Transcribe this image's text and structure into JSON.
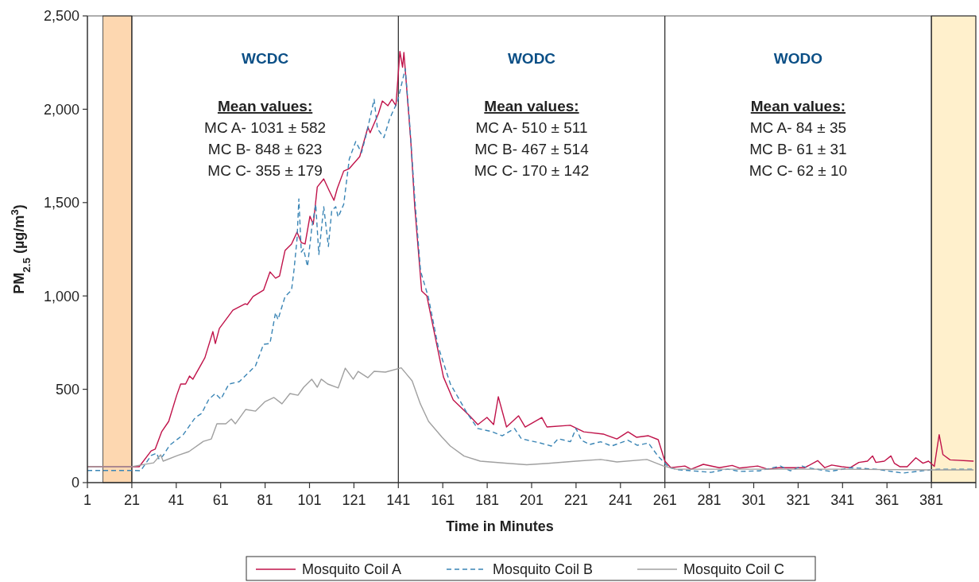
{
  "chart_data": {
    "type": "line",
    "xlabel": "Time in Minutes",
    "ylabel": "PM$_{2.5}$ (µg/m$^{3}$)",
    "xlim": [
      1,
      401
    ],
    "xticks": [
      1,
      21,
      41,
      61,
      81,
      101,
      121,
      141,
      161,
      181,
      201,
      221,
      241,
      261,
      281,
      301,
      321,
      341,
      361,
      381,
      {
        "value": 401,
        "label": null
      }
    ],
    "ylim": [
      0,
      2500
    ],
    "yticks": [
      0,
      500,
      {
        "value": 1000,
        "label": "1,000"
      },
      {
        "value": 1500,
        "label": "1,500"
      },
      {
        "value": 2000,
        "label": "2,000"
      },
      {
        "value": 2500,
        "label": "2,500"
      }
    ],
    "grid": false,
    "legend": "bottom",
    "series": [
      {
        "name": "Mosquito Coil A",
        "color": "#c0134a",
        "line_style": "solid",
        "x": [
          1,
          21,
          24.3,
          29.7,
          31.5,
          34.4,
          37.6,
          41.2,
          43,
          45.2,
          47,
          48.5,
          53.9,
          57.5,
          58.6,
          60.4,
          66.5,
          72,
          73,
          75.6,
          80.3,
          83.2,
          85.7,
          87.5,
          90,
          92.9,
          95.4,
          97.3,
          99,
          101.2,
          102.7,
          104.5,
          107.4,
          109.9,
          112,
          113.5,
          116.4,
          118.9,
          123.6,
          127.3,
          128.3,
          132,
          133.8,
          136.3,
          138.1,
          139.9,
          141.7,
          142.9,
          143.5,
          146.6,
          148.4,
          151.5,
          153.8,
          157.1,
          161.3,
          165.7,
          173.1,
          176.8,
          180.9,
          183.9,
          186,
          189.7,
          195.1,
          198.1,
          205.6,
          207.9,
          218.4,
          224.5,
          233.3,
          239.4,
          244.4,
          248.2,
          253.6,
          258,
          261,
          263.7,
          270,
          272.8,
          278.3,
          285.5,
          291.3,
          294.5,
          302.8,
          307.3,
          312.4,
          324,
          329.8,
          333,
          336.1,
          340.6,
          344.5,
          348.3,
          352.2,
          354.5,
          356,
          359.8,
          362.8,
          364.3,
          366.9,
          370.1,
          374,
          377.2,
          379.7,
          382.3,
          384.5,
          386.2,
          389.4,
          400
        ],
        "values": [
          85,
          85,
          85,
          170,
          179,
          272,
          328,
          468,
          528,
          528,
          571,
          554,
          669,
          809,
          745,
          826,
          924,
          958,
          954,
          997,
          1031,
          1129,
          1095,
          1107,
          1244,
          1278,
          1342,
          1286,
          1278,
          1427,
          1384,
          1584,
          1627,
          1563,
          1512,
          1576,
          1669,
          1682,
          1746,
          1904,
          1874,
          1976,
          2044,
          2019,
          2053,
          2019,
          2310,
          2225,
          2304,
          1831,
          1474,
          1026,
          1001,
          809,
          566,
          443,
          358,
          311,
          349,
          311,
          460,
          298,
          358,
          298,
          349,
          298,
          307,
          272,
          260,
          234,
          272,
          243,
          251,
          230,
          115,
          80,
          89,
          72,
          98,
          80,
          92,
          78,
          89,
          72,
          80,
          80,
          118,
          80,
          94,
          85,
          80,
          108,
          115,
          143,
          108,
          115,
          143,
          104,
          85,
          85,
          133,
          104,
          115,
          87,
          257,
          150,
          122,
          115
        ]
      },
      {
        "name": "Mosquito Coil B",
        "color": "#3a85b5",
        "line_style": "dashed",
        "x": [
          1,
          21,
          25,
          29.7,
          32.2,
          33.3,
          35.1,
          38,
          44.1,
          49.6,
          52.4,
          55.7,
          58.6,
          61.1,
          64.7,
          69.4,
          73,
          76.7,
          80.3,
          83.2,
          85.7,
          86.8,
          90,
          92.9,
          94,
          95.4,
          96.2,
          97.3,
          98.3,
          100.1,
          102,
          103.8,
          105.2,
          107.4,
          109.5,
          111,
          112.8,
          113.9,
          116.4,
          118.9,
          121.8,
          124.4,
          126.2,
          127.3,
          130.1,
          131.6,
          134.5,
          137,
          138.1,
          140.6,
          144.1,
          146,
          148.4,
          151,
          154.5,
          158.9,
          164.4,
          171.8,
          176.7,
          182.9,
          187.8,
          193.3,
          196.4,
          205,
          209.9,
          213,
          218.5,
          221,
          223.4,
          227.1,
          232.1,
          237,
          244.3,
          248.6,
          253.6,
          257.9,
          262.9,
          266.3,
          281.7,
          289.3,
          294.5,
          303.5,
          313,
          317.5,
          322.7,
          325.2,
          335.5,
          344.5,
          356,
          368.2,
          376.5,
          384.2,
          400
        ],
        "values": [
          65,
          65,
          64,
          145,
          158,
          124,
          145,
          200,
          256,
          349,
          370,
          447,
          477,
          447,
          528,
          541,
          583,
          626,
          741,
          745,
          911,
          873,
          997,
          1031,
          1137,
          1307,
          1520,
          1235,
          1252,
          1158,
          1363,
          1491,
          1222,
          1478,
          1265,
          1457,
          1478,
          1422,
          1491,
          1733,
          1827,
          1767,
          1848,
          1904,
          2053,
          1895,
          1848,
          1946,
          1976,
          2040,
          2217,
          1939,
          1520,
          1133,
          994,
          730,
          529,
          375,
          290,
          274,
          251,
          290,
          235,
          212,
          196,
          235,
          219,
          290,
          227,
          204,
          219,
          196,
          227,
          200,
          212,
          142,
          81,
          70,
          55,
          72,
          60,
          63,
          89,
          63,
          89,
          80,
          60,
          80,
          72,
          51,
          63,
          72,
          72
        ]
      },
      {
        "name": "Mosquito Coil C",
        "color": "#a0a0a0",
        "line_style": "solid",
        "x": [
          1,
          21,
          25,
          30.8,
          34,
          35.1,
          41.6,
          46.7,
          53.2,
          56.8,
          59.3,
          63.3,
          65.8,
          67.6,
          72.3,
          76.7,
          81,
          85,
          88.6,
          92.2,
          95.8,
          98.4,
          102,
          104.5,
          106.3,
          109.2,
          113.9,
          117.1,
          120.7,
          122.9,
          127.3,
          130.1,
          135.2,
          142.3,
          147.2,
          150.9,
          154.6,
          160.7,
          164.4,
          170.6,
          177.9,
          190.2,
          198.8,
          208.6,
          221,
          232.1,
          239.4,
          252.9,
          260.4,
          266,
          300,
          340,
          380,
          400
        ],
        "values": [
          85,
          85,
          94,
          106,
          149,
          115,
          145,
          166,
          221,
          234,
          315,
          315,
          341,
          315,
          392,
          383,
          434,
          456,
          422,
          477,
          468,
          511,
          554,
          511,
          554,
          528,
          507,
          613,
          554,
          596,
          562,
          596,
          592,
          615,
          545,
          422,
          328,
          243,
          196,
          142,
          115,
          103,
          96,
          103,
          115,
          124,
          111,
          124,
          89,
          72,
          72,
          72,
          68,
          68
        ]
      }
    ],
    "bands": [
      {
        "axis": "x",
        "from": 8,
        "to": 21,
        "color": "#fdd7b0"
      },
      {
        "axis": "x",
        "from": 381,
        "to": 401,
        "color": "#fff0cc"
      }
    ],
    "ref_lines": [
      {
        "axis": "x",
        "value": 21,
        "color": "#222222"
      },
      {
        "axis": "x",
        "value": 141,
        "color": "#222222"
      },
      {
        "axis": "x",
        "value": 261,
        "color": "#222222"
      },
      {
        "axis": "x",
        "value": 381,
        "color": "#222222"
      }
    ],
    "annotations": [
      "WCDC",
      "Mean values:",
      "MC A- 1031 ± 582",
      "MC B- 848 ± 623",
      "MC C- 355 ± 179",
      "WODC",
      "Mean values:",
      "MC A- 510 ± 511",
      "MC B- 467 ± 514",
      "MC C- 170 ± 142",
      "WODO",
      "Mean values:",
      "MC A- 84 ± 35",
      "MC B- 61 ± 31",
      "MC C- 62 ± 10"
    ]
  }
}
